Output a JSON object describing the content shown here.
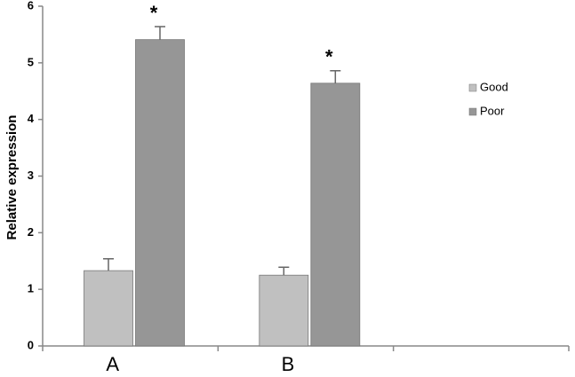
{
  "chart_data": {
    "type": "bar",
    "y_label": "Relative expression",
    "categories": [
      "A",
      "B",
      null
    ],
    "series": [
      {
        "name": "Good",
        "color": "#c0c0c0",
        "values": [
          1.33,
          1.25,
          null
        ],
        "errors": [
          0.21,
          0.14,
          null
        ]
      },
      {
        "name": "Poor",
        "color": "#969696",
        "values": [
          5.41,
          4.64,
          null
        ],
        "errors": [
          0.23,
          0.22,
          null
        ],
        "annotations": [
          "*",
          "*",
          null
        ]
      }
    ],
    "ylim": [
      0,
      6
    ],
    "yticks": [
      0,
      1,
      2,
      3,
      4,
      5,
      6
    ],
    "grid": false,
    "legend": "right"
  }
}
